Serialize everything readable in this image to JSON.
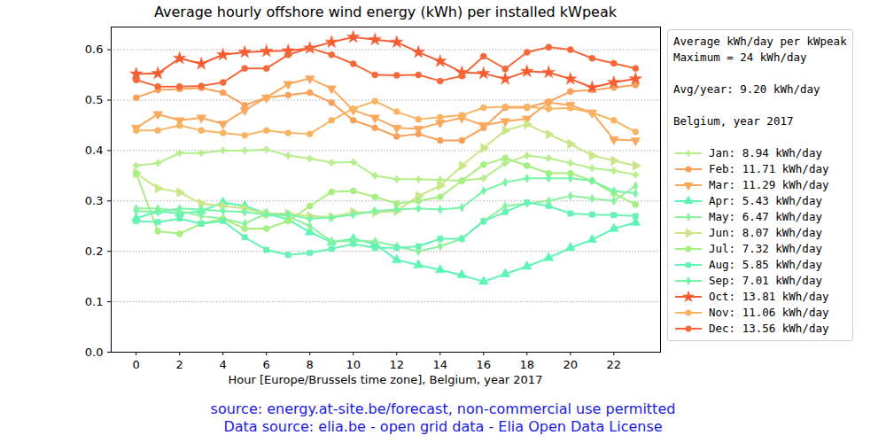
{
  "chart_data": {
    "type": "line",
    "title": "Average hourly offshore wind energy (kWh) per installed kWpeak",
    "x_label": "Hour [Europe/Brussels time zone], Belgium, year 2017",
    "legend_title": [
      [
        "Average kWh/day per kWpeak",
        "Maximum = 24 kWh/day"
      ],
      [
        "Avg/year: 9.20 kWh/day"
      ],
      [
        "Belgium, year 2017"
      ]
    ],
    "source": [
      "source: energy.at-site.be/forecast, non-commercial use permitted",
      "Data source: elia.be - open grid data - Elia Open Data License"
    ],
    "legend": "right",
    "grid": "y",
    "xlim": [
      -1.15,
      24.15
    ],
    "xticks": [
      0,
      2,
      4,
      6,
      8,
      10,
      12,
      14,
      16,
      18,
      20,
      22
    ],
    "ylim": [
      0,
      0.645
    ],
    "yticks": [
      {
        "value": 0,
        "label": "0.0"
      },
      0.1,
      0.2,
      0.3,
      0.4,
      0.5,
      0.6
    ],
    "x": [
      0,
      1,
      2,
      3,
      4,
      5,
      6,
      7,
      8,
      9,
      10,
      11,
      12,
      13,
      14,
      15,
      16,
      17,
      18,
      19,
      20,
      21,
      22,
      23
    ],
    "series": [
      {
        "name": "Jan: 8.94 kWh/day",
        "color": "#b5ee8b",
        "marker": "plus",
        "values": [
          0.37,
          0.375,
          0.395,
          0.395,
          0.4,
          0.4,
          0.402,
          0.39,
          0.384,
          0.376,
          0.377,
          0.35,
          0.343,
          0.343,
          0.342,
          0.34,
          0.345,
          0.375,
          0.39,
          0.385,
          0.375,
          0.365,
          0.36,
          0.352
        ]
      },
      {
        "name": "Feb: 11.71 kWh/day",
        "color": "#f9a05a",
        "marker": "circle",
        "values": [
          0.505,
          0.52,
          0.522,
          0.524,
          0.515,
          0.49,
          0.505,
          0.51,
          0.515,
          0.495,
          0.46,
          0.445,
          0.428,
          0.433,
          0.42,
          0.42,
          0.445,
          0.485,
          0.485,
          0.497,
          0.517,
          0.52,
          0.525,
          0.53
        ]
      },
      {
        "name": "Mar: 11.29 kWh/day",
        "color": "#faa85e",
        "marker": "triangle_down",
        "values": [
          0.445,
          0.472,
          0.46,
          0.465,
          0.453,
          0.48,
          0.505,
          0.532,
          0.543,
          0.523,
          0.48,
          0.465,
          0.445,
          0.443,
          0.455,
          0.465,
          0.45,
          0.458,
          0.463,
          0.495,
          0.49,
          0.475,
          0.422,
          0.42
        ]
      },
      {
        "name": "Apr: 5.43 kWh/day",
        "color": "#5cf5b5",
        "marker": "triangle_up",
        "values": [
          0.265,
          0.28,
          0.275,
          0.28,
          0.297,
          0.29,
          0.275,
          0.263,
          0.238,
          0.218,
          0.225,
          0.215,
          0.183,
          0.173,
          0.163,
          0.153,
          0.14,
          0.155,
          0.17,
          0.187,
          0.207,
          0.223,
          0.245,
          0.257
        ]
      },
      {
        "name": "May: 6.47 kWh/day",
        "color": "#8df29c",
        "marker": "diamond",
        "values": [
          0.285,
          0.285,
          0.28,
          0.27,
          0.265,
          0.255,
          0.275,
          0.27,
          0.25,
          0.22,
          0.22,
          0.22,
          0.21,
          0.2,
          0.21,
          0.225,
          0.26,
          0.29,
          0.295,
          0.3,
          0.31,
          0.305,
          0.3,
          0.33
        ]
      },
      {
        "name": "Jun: 8.07 kWh/day",
        "color": "#cbe688",
        "marker": "triangle_right",
        "values": [
          0.355,
          0.325,
          0.317,
          0.295,
          0.29,
          0.285,
          0.275,
          0.275,
          0.27,
          0.268,
          0.278,
          0.277,
          0.28,
          0.31,
          0.33,
          0.37,
          0.405,
          0.44,
          0.452,
          0.432,
          0.413,
          0.39,
          0.38,
          0.37
        ]
      },
      {
        "name": "Jul: 7.32 kWh/day",
        "color": "#a6ef80",
        "marker": "circle",
        "values": [
          0.355,
          0.24,
          0.235,
          0.255,
          0.265,
          0.245,
          0.245,
          0.26,
          0.29,
          0.318,
          0.32,
          0.308,
          0.295,
          0.3,
          0.308,
          0.34,
          0.372,
          0.385,
          0.37,
          0.355,
          0.355,
          0.34,
          0.315,
          0.293
        ]
      },
      {
        "name": "Aug: 5.85 kWh/day",
        "color": "#66f2b4",
        "marker": "square",
        "values": [
          0.26,
          0.258,
          0.265,
          0.255,
          0.26,
          0.228,
          0.203,
          0.193,
          0.197,
          0.205,
          0.215,
          0.207,
          0.207,
          0.21,
          0.225,
          0.225,
          0.26,
          0.278,
          0.297,
          0.29,
          0.275,
          0.273,
          0.272,
          0.27
        ]
      },
      {
        "name": "Sep: 7.01 kWh/day",
        "color": "#78f4a8",
        "marker": "diamond",
        "values": [
          0.28,
          0.278,
          0.285,
          0.283,
          0.28,
          0.278,
          0.273,
          0.273,
          0.265,
          0.267,
          0.273,
          0.28,
          0.283,
          0.285,
          0.283,
          0.287,
          0.32,
          0.337,
          0.345,
          0.345,
          0.345,
          0.34,
          0.32,
          0.315
        ]
      },
      {
        "name": "Oct: 13.81 kWh/day",
        "color": "#f65c32",
        "marker": "star",
        "values": [
          0.552,
          0.553,
          0.583,
          0.572,
          0.59,
          0.595,
          0.597,
          0.598,
          0.603,
          0.615,
          0.625,
          0.62,
          0.615,
          0.595,
          0.577,
          0.555,
          0.553,
          0.542,
          0.557,
          0.555,
          0.542,
          0.525,
          0.535,
          0.542
        ]
      },
      {
        "name": "Nov: 11.06 kWh/day",
        "color": "#f8b463",
        "marker": "circle",
        "values": [
          0.44,
          0.44,
          0.45,
          0.44,
          0.435,
          0.43,
          0.44,
          0.435,
          0.433,
          0.46,
          0.483,
          0.498,
          0.477,
          0.462,
          0.466,
          0.47,
          0.485,
          0.487,
          0.487,
          0.483,
          0.484,
          0.475,
          0.46,
          0.437
        ]
      },
      {
        "name": "Dec: 13.56 kWh/day",
        "color": "#f4683a",
        "marker": "circle",
        "values": [
          0.54,
          0.527,
          0.527,
          0.528,
          0.535,
          0.563,
          0.563,
          0.59,
          0.603,
          0.59,
          0.572,
          0.55,
          0.549,
          0.55,
          0.538,
          0.548,
          0.587,
          0.562,
          0.595,
          0.605,
          0.6,
          0.583,
          0.573,
          0.563
        ]
      }
    ]
  }
}
